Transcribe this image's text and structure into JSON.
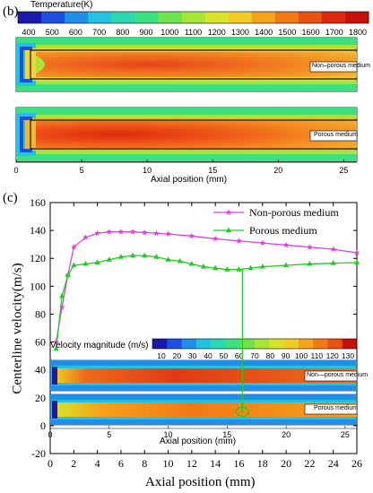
{
  "panel_b": {
    "label": "(b)",
    "colorbar": {
      "title": "Temperature(K)",
      "ticks": [
        "400",
        "500",
        "600",
        "700",
        "800",
        "900",
        "1000",
        "1100",
        "1200",
        "1300",
        "1400",
        "1500",
        "1600",
        "1700",
        "1800"
      ],
      "colors": [
        "#1a1aa8",
        "#1f4fe0",
        "#1f8fe8",
        "#22c2e0",
        "#2ad9b0",
        "#3ce080",
        "#6fe34c",
        "#a8e436",
        "#d8e22a",
        "#f2cc22",
        "#f5a21c",
        "#f07a16",
        "#e85212",
        "#dd2a0e",
        "#c8100a"
      ]
    },
    "contour_labels": [
      "Non–porous medium",
      "Porous medium"
    ],
    "xaxis": {
      "title": "Axial position (mm)",
      "ticks": [
        "0",
        "5",
        "10",
        "15",
        "20",
        "25"
      ],
      "range": [
        0,
        26
      ]
    }
  },
  "panel_c": {
    "label": "(c)",
    "colorbar": {
      "title": "Velocity magnitude (m/s)",
      "ticks": [
        "10",
        "20",
        "30",
        "40",
        "50",
        "60",
        "70",
        "80",
        "90",
        "100",
        "110",
        "120",
        "130"
      ],
      "colors": [
        "#1a1aa8",
        "#1f4fe0",
        "#1f8fe8",
        "#22c2e0",
        "#2ad9b0",
        "#3ce080",
        "#6fe34c",
        "#a8e436",
        "#d8e22a",
        "#f2cc22",
        "#f5a21c",
        "#f07a16",
        "#e85212",
        "#c8100a"
      ]
    },
    "contour_labels": [
      "Non—porous medium",
      "Porous medium"
    ],
    "inset_xaxis": {
      "title": "Axial position (mm)",
      "ticks": [
        "0",
        "5",
        "10",
        "15",
        "20",
        "25"
      ]
    }
  },
  "chart_data": {
    "type": "line",
    "xlabel": "Axial position (mm)",
    "ylabel": "Centerline velocity(m/s)",
    "xlim": [
      0,
      26
    ],
    "ylim": [
      -20,
      160
    ],
    "xticks": [
      0,
      2,
      4,
      6,
      8,
      10,
      12,
      14,
      16,
      18,
      20,
      22,
      24,
      26
    ],
    "yticks": [
      -20,
      0,
      20,
      40,
      60,
      80,
      100,
      120,
      140,
      160
    ],
    "legend_position": "top-right",
    "series": [
      {
        "name": "Non-porous medium",
        "color": "#e040e0",
        "marker": "star",
        "x": [
          0.5,
          1,
          1.5,
          2,
          3,
          4,
          5,
          6,
          7,
          8,
          9,
          10,
          12,
          14,
          16,
          18,
          20,
          22,
          24,
          26
        ],
        "y": [
          60,
          85,
          108,
          128,
          135,
          138,
          139,
          139,
          139,
          138.5,
          138,
          137.5,
          136,
          134,
          132.5,
          131,
          129.5,
          128,
          126.5,
          124
        ]
      },
      {
        "name": "Porous medium",
        "color": "#22cc22",
        "marker": "triangle",
        "x": [
          0.5,
          1,
          1.5,
          2,
          3,
          4,
          5,
          6,
          7,
          8,
          9,
          10,
          11,
          12,
          13,
          14,
          15,
          16,
          17,
          18,
          20,
          22,
          24,
          26
        ],
        "y": [
          55,
          93,
          108,
          115,
          116,
          117,
          119,
          121,
          122,
          122,
          121,
          119,
          118,
          116,
          114,
          113,
          112,
          112,
          113,
          114,
          115,
          116,
          116.5,
          117
        ]
      }
    ],
    "annotation": {
      "x": 16.3,
      "y_top": 112,
      "y_bottom": 10
    }
  }
}
